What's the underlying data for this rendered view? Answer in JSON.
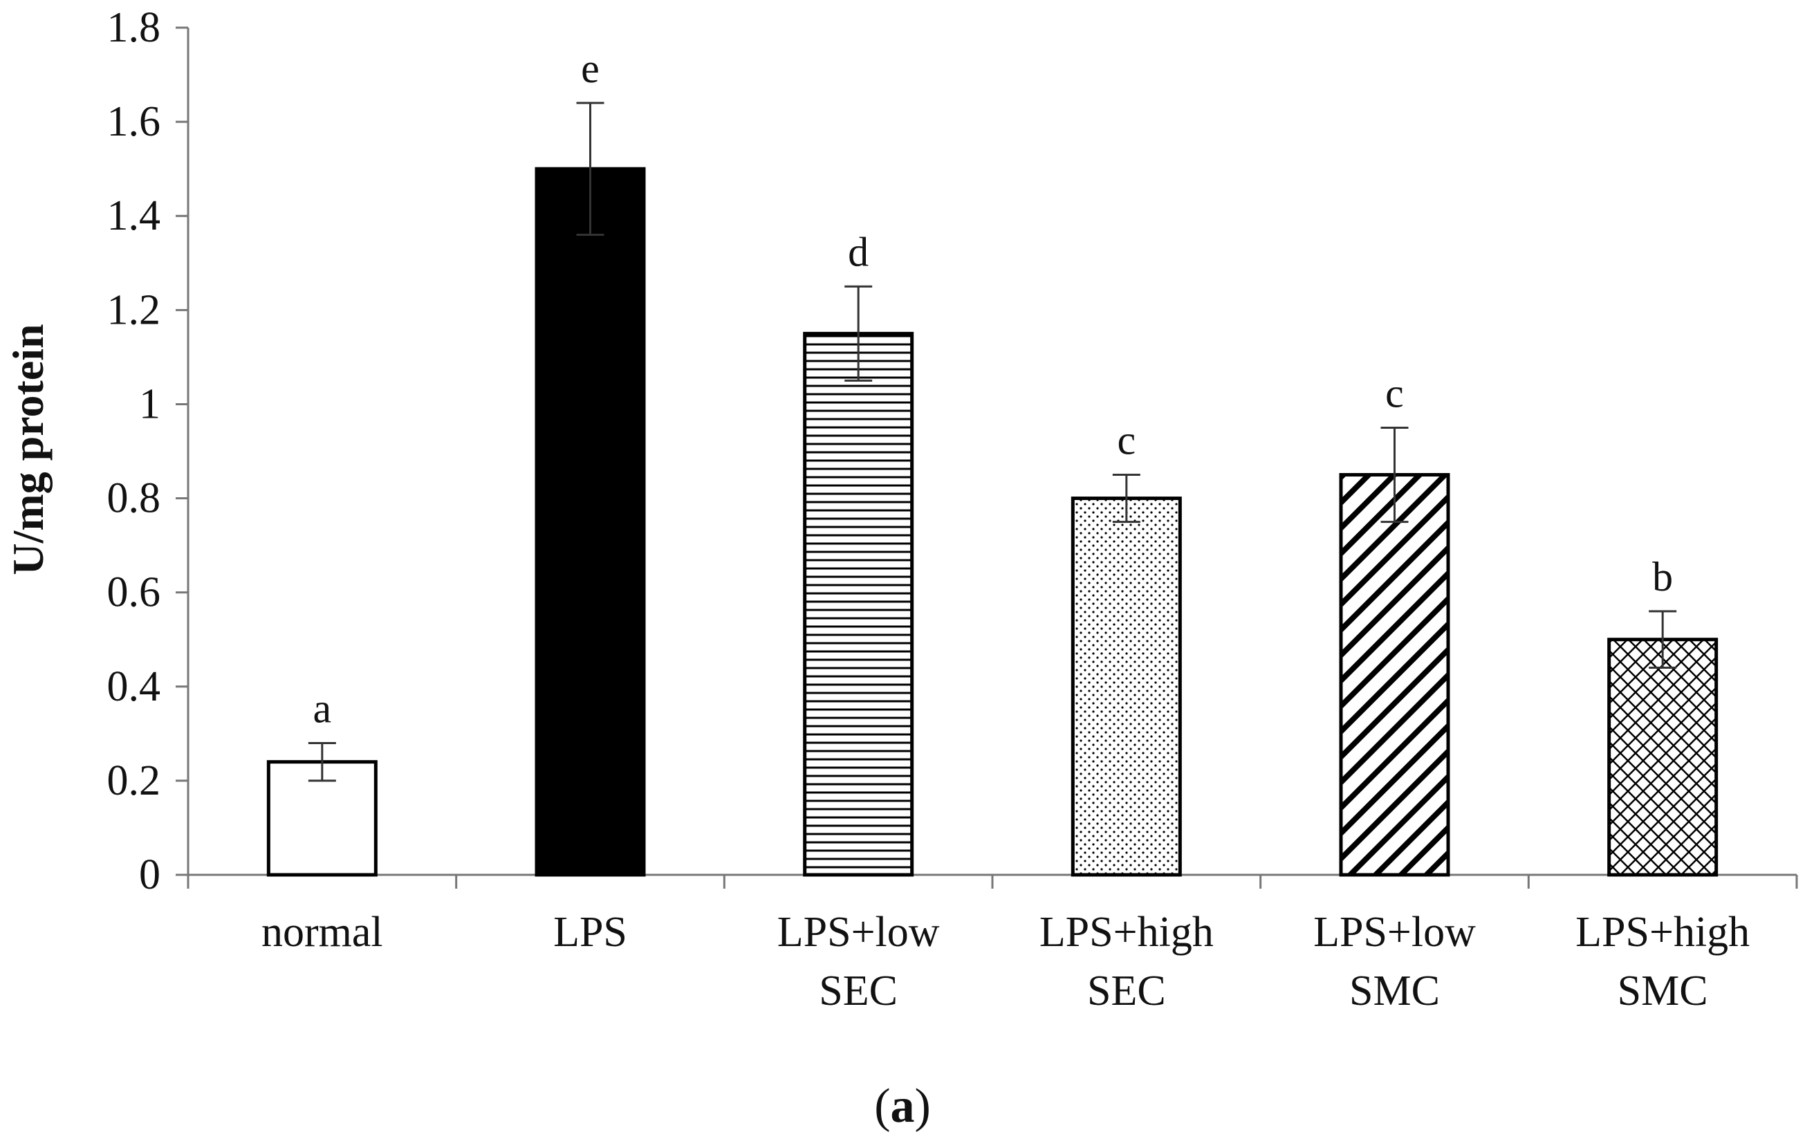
{
  "chart_data": {
    "type": "bar",
    "title": "",
    "xlabel": "",
    "ylabel": "U/mg protein",
    "ylim": [
      0,
      1.8
    ],
    "yticks": [
      "0",
      "0.2",
      "0.4",
      "0.6",
      "0.8",
      "1",
      "1.2",
      "1.4",
      "1.6",
      "1.8"
    ],
    "grid": false,
    "categories": [
      [
        "normal"
      ],
      [
        "LPS"
      ],
      [
        "LPS+low",
        "SEC"
      ],
      [
        "LPS+high",
        "SEC"
      ],
      [
        "LPS+low",
        "SMC"
      ],
      [
        "LPS+high",
        "SMC"
      ]
    ],
    "values": [
      0.24,
      1.5,
      1.15,
      0.8,
      0.85,
      0.5
    ],
    "errors": [
      0.04,
      0.14,
      0.1,
      0.05,
      0.1,
      0.06
    ],
    "significance_letters": [
      "a",
      "e",
      "d",
      "c",
      "c",
      "b"
    ],
    "fills": [
      "white",
      "black",
      "horizontal-lines",
      "dots",
      "diagonal-lines",
      "crosshatch"
    ]
  },
  "panel_label": {
    "open": "(",
    "letter": "a",
    "close": ")"
  }
}
